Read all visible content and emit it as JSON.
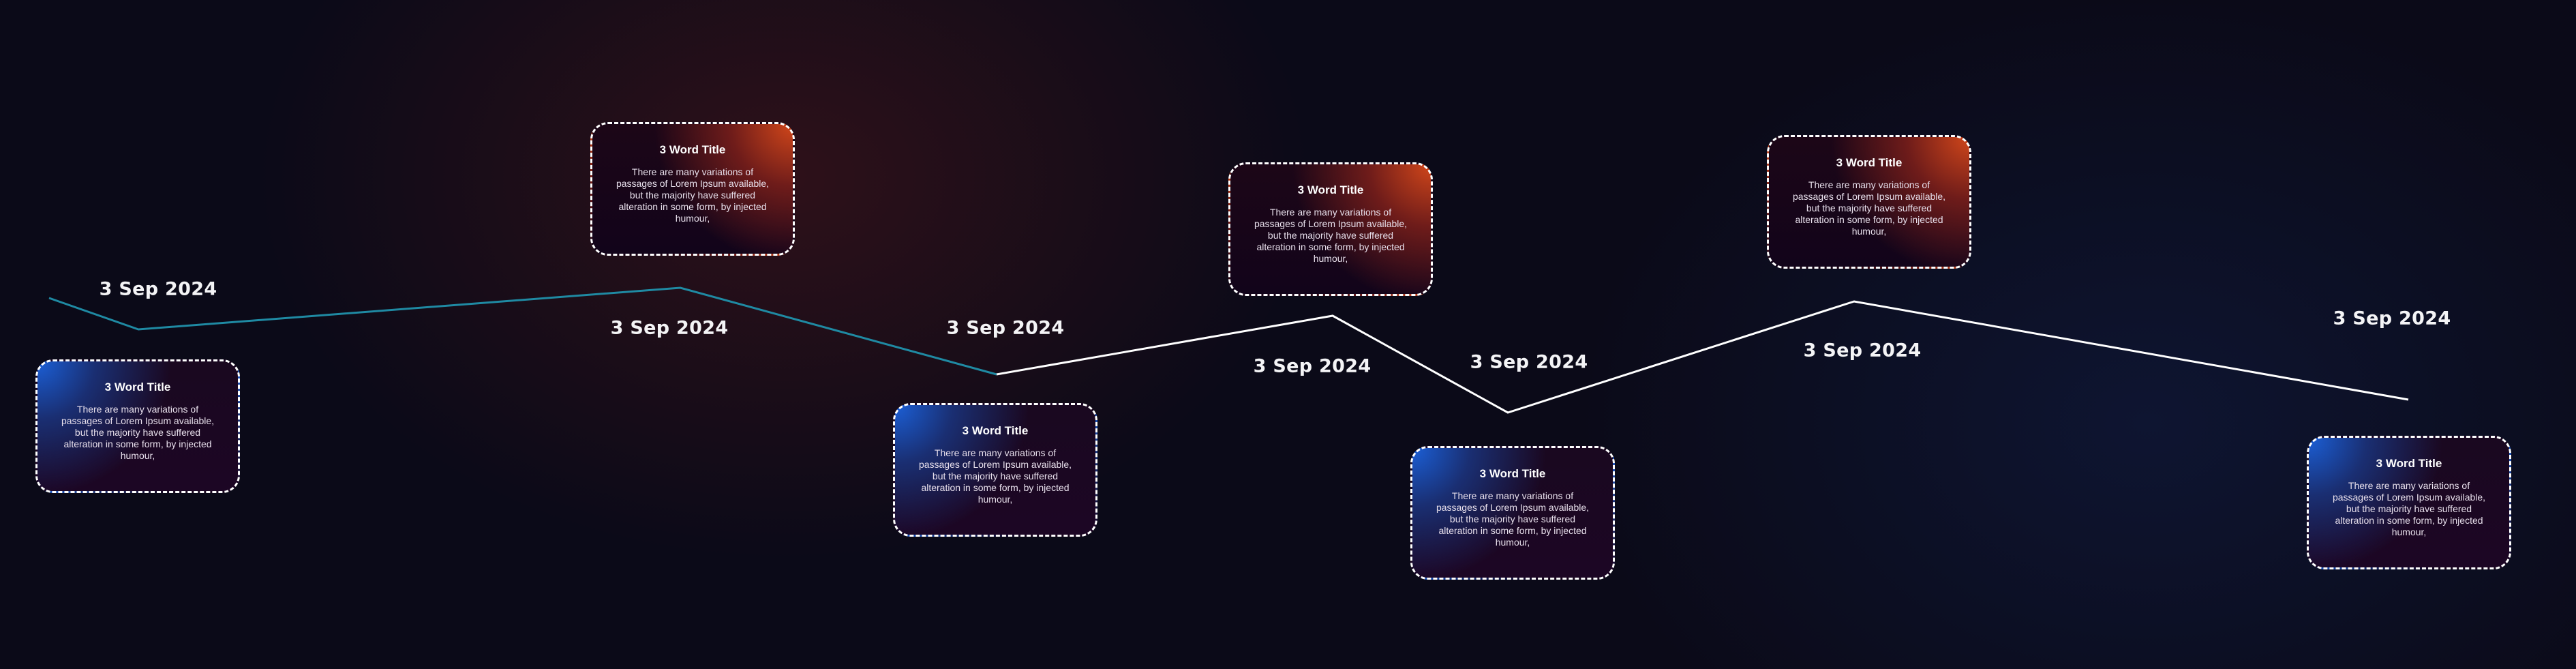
{
  "colors": {
    "background": "#0b0a18",
    "line_teal": "#1f8aa3",
    "line_white": "#ffffff",
    "card_border": "#ffffff",
    "glow_orange": "#d0461a",
    "glow_blue": "#1b5fd6"
  },
  "milestones": [
    {
      "date": "3 Sep 2024",
      "title": "3 Word Title",
      "body": "There are many variations of passages of Lorem Ipsum available, but the majority have suffered alteration in some form, by injected humour,"
    },
    {
      "date": "3 Sep 2024",
      "title": "3 Word Title",
      "body": "There are many variations of passages of Lorem Ipsum available, but the majority have suffered alteration in some form, by injected humour,"
    },
    {
      "date": "3 Sep 2024",
      "title": "3 Word Title",
      "body": "There are many variations of passages of Lorem Ipsum available, but the majority have suffered alteration in some form, by injected humour,"
    },
    {
      "date": "3 Sep 2024",
      "title": "3 Word Title",
      "body": "There are many variations of passages of Lorem Ipsum available, but the majority have suffered alteration in some form, by injected humour,"
    },
    {
      "date": "3 Sep 2024",
      "title": "3 Word Title",
      "body": "There are many variations of passages of Lorem Ipsum available, but the majority have suffered alteration in some form, by injected humour,"
    },
    {
      "date": "3 Sep 2024",
      "title": "3 Word Title",
      "body": "There are many variations of passages of Lorem Ipsum available, but the majority have suffered alteration in some form, by injected humour,"
    },
    {
      "date": "3 Sep 2024",
      "title": "3 Word Title",
      "body": "There are many variations of passages of Lorem Ipsum available, but the majority have suffered alteration in some form, by injected humour,"
    }
  ]
}
